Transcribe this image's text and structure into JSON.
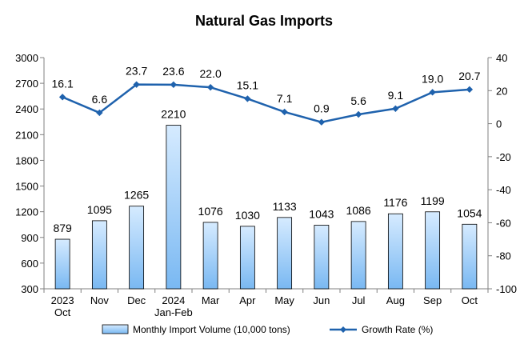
{
  "chart_data": {
    "type": "bar",
    "title": "Natural Gas Imports",
    "categories": [
      [
        "2023",
        "Oct"
      ],
      [
        "Nov"
      ],
      [
        "Dec"
      ],
      [
        "2024",
        "Jan-Feb"
      ],
      [
        "Mar"
      ],
      [
        "Apr"
      ],
      [
        "May"
      ],
      [
        "Jun"
      ],
      [
        "Jul"
      ],
      [
        "Aug"
      ],
      [
        "Sep"
      ],
      [
        "Oct"
      ]
    ],
    "series": [
      {
        "name": "Monthly Import Volume (10,000 tons)",
        "type": "bar",
        "axis": "left",
        "values": [
          879,
          1095,
          1265,
          2210,
          1076,
          1030,
          1133,
          1043,
          1086,
          1176,
          1199,
          1054
        ],
        "labels": [
          "879",
          "1095",
          "1265",
          "2210",
          "1076",
          "1030",
          "1133",
          "1043",
          "1086",
          "1176",
          "1199",
          "1054"
        ]
      },
      {
        "name": "Growth Rate (%)",
        "type": "line",
        "axis": "right",
        "values": [
          16.1,
          6.6,
          23.7,
          23.6,
          22.0,
          15.1,
          7.1,
          0.9,
          5.6,
          9.1,
          19.0,
          20.7
        ],
        "labels": [
          "16.1",
          "6.6",
          "23.7",
          "23.6",
          "22.0",
          "15.1",
          "7.1",
          "0.9",
          "5.6",
          "9.1",
          "19.0",
          "20.7"
        ]
      }
    ],
    "y_left": {
      "min": 300,
      "max": 3000,
      "ticks": [
        "300",
        "600",
        "900",
        "1200",
        "1500",
        "1800",
        "2100",
        "2400",
        "2700",
        "3000"
      ]
    },
    "y_right": {
      "min": -100,
      "max": 40,
      "ticks": [
        "-100",
        "-80",
        "-60",
        "-40",
        "-20",
        "0",
        "20",
        "40"
      ]
    },
    "grid": false,
    "legend": "bottom",
    "colors": {
      "bar_fill_top": "#d6ebff",
      "bar_fill_bottom": "#79b8f2",
      "bar_stroke": "#000000",
      "line": "#1f62ad",
      "axis": "#808080"
    }
  }
}
